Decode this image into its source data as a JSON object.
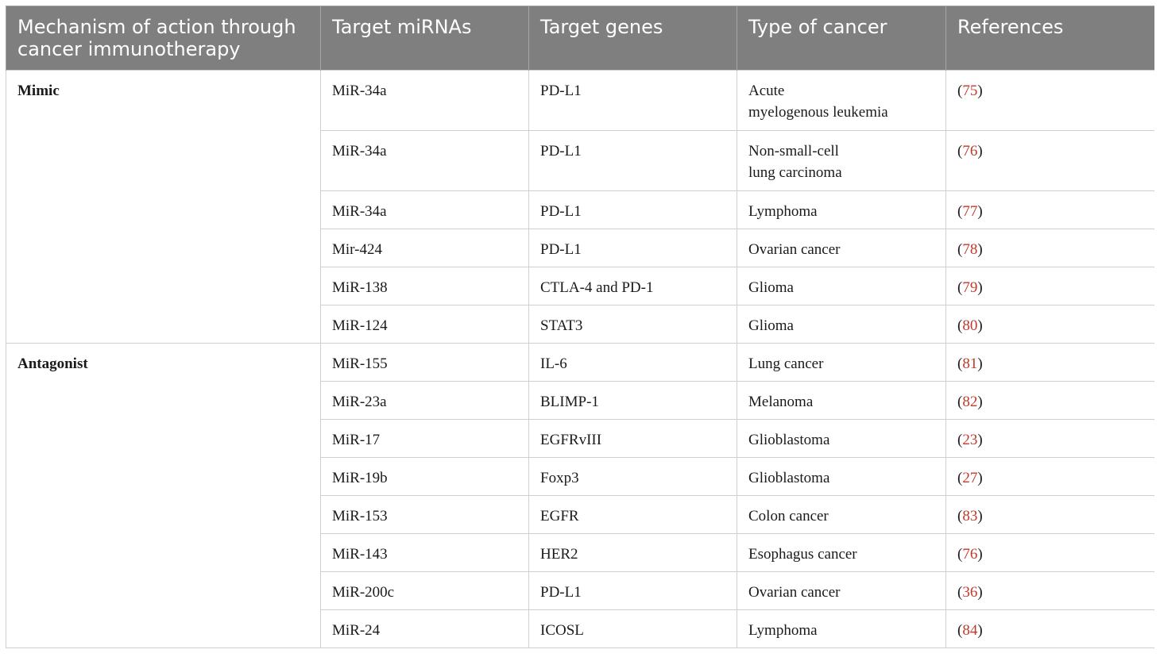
{
  "table": {
    "headers": [
      "Mechanism of action through cancer immunotherapy",
      "Target miRNAs",
      "Target genes",
      "Type of cancer",
      "References"
    ],
    "groups": [
      {
        "mechanism": "Mimic",
        "rows": [
          {
            "mirna": "MiR-34a",
            "gene": "PD-L1",
            "cancer_line1": "Acute",
            "cancer_line2": "myelogenous leukemia",
            "ref": "75"
          },
          {
            "mirna": "MiR-34a",
            "gene": "PD-L1",
            "cancer_line1": "Non-small-cell",
            "cancer_line2": "lung carcinoma",
            "ref": "76"
          },
          {
            "mirna": "MiR-34a",
            "gene": "PD-L1",
            "cancer_line1": "Lymphoma",
            "cancer_line2": "",
            "ref": "77"
          },
          {
            "mirna": "Mir-424",
            "gene": "PD-L1",
            "cancer_line1": "Ovarian cancer",
            "cancer_line2": "",
            "ref": "78"
          },
          {
            "mirna": "MiR-138",
            "gene": "CTLA-4 and PD-1",
            "cancer_line1": "Glioma",
            "cancer_line2": "",
            "ref": "79"
          },
          {
            "mirna": "MiR-124",
            "gene": "STAT3",
            "cancer_line1": "Glioma",
            "cancer_line2": "",
            "ref": "80"
          }
        ]
      },
      {
        "mechanism": "Antagonist",
        "rows": [
          {
            "mirna": "MiR-155",
            "gene": "IL-6",
            "cancer_line1": "Lung cancer",
            "cancer_line2": "",
            "ref": "81"
          },
          {
            "mirna": "MiR-23a",
            "gene": "BLIMP-1",
            "cancer_line1": "Melanoma",
            "cancer_line2": "",
            "ref": "82"
          },
          {
            "mirna": "MiR-17",
            "gene": "EGFRvIII",
            "cancer_line1": "Glioblastoma",
            "cancer_line2": "",
            "ref": "23"
          },
          {
            "mirna": "MiR-19b",
            "gene": "Foxp3",
            "cancer_line1": "Glioblastoma",
            "cancer_line2": "",
            "ref": "27"
          },
          {
            "mirna": "MiR-153",
            "gene": "EGFR",
            "cancer_line1": "Colon cancer",
            "cancer_line2": "",
            "ref": "83"
          },
          {
            "mirna": "MiR-143",
            "gene": "HER2",
            "cancer_line1": "Esophagus cancer",
            "cancer_line2": "",
            "ref": "76"
          },
          {
            "mirna": "MiR-200c",
            "gene": "PD-L1",
            "cancer_line1": "Ovarian cancer",
            "cancer_line2": "",
            "ref": "36"
          },
          {
            "mirna": "MiR-24",
            "gene": "ICOSL",
            "cancer_line1": "Lymphoma",
            "cancer_line2": "",
            "ref": "84"
          }
        ]
      }
    ],
    "colors": {
      "header_bg": "#7f7f7f",
      "header_text": "#ffffff",
      "reference_link": "#c0392b",
      "grid_line": "#cfcfcf"
    }
  }
}
